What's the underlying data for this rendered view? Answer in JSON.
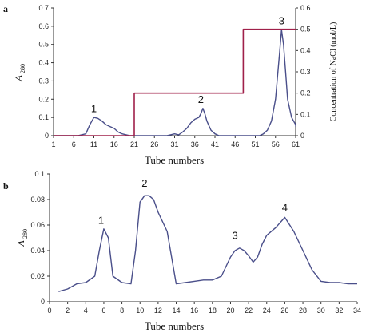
{
  "chart_data": [
    {
      "panel": "a",
      "type": "line",
      "xlabel": "Tube numbers",
      "ylabel": "A",
      "ylabel_sub": "280",
      "y2label": "Concentration of NaCl (mol/L)",
      "xlim": [
        1,
        61
      ],
      "ylim": [
        0,
        0.7
      ],
      "y2lim": [
        0,
        0.6
      ],
      "x_ticks": [
        "1",
        "6",
        "11",
        "16",
        "21",
        "26",
        "31",
        "36",
        "41",
        "46",
        "51",
        "56",
        "61"
      ],
      "y_ticks": [
        "0",
        "0.1",
        "0.2",
        "0.3",
        "0.4",
        "0.5",
        "0.6",
        "0.7"
      ],
      "y2_ticks": [
        "0",
        "0.1",
        "0.2",
        "0.3",
        "0.4",
        "0.5",
        "0.6"
      ],
      "series": [
        {
          "axis": "left",
          "color": "#4a4f8a",
          "x": [
            1,
            3,
            5,
            7,
            9,
            10,
            11,
            12,
            13,
            14,
            15,
            16,
            17,
            18,
            19,
            20,
            21,
            22,
            23,
            24,
            25,
            26,
            27,
            28,
            29,
            30,
            31,
            32,
            33,
            34,
            35,
            36,
            37,
            37.5,
            38,
            38.5,
            39,
            40,
            41,
            42,
            43,
            44,
            45,
            46,
            47,
            48,
            49,
            50,
            51,
            52,
            53,
            54,
            55,
            56,
            57,
            57.5,
            58,
            58.5,
            59,
            60,
            61,
            62
          ],
          "values": [
            0,
            0,
            0,
            0,
            0.01,
            0.06,
            0.1,
            0.095,
            0.08,
            0.06,
            0.05,
            0.04,
            0.02,
            0.01,
            0.005,
            0,
            0,
            0,
            0,
            0,
            0,
            0,
            0,
            0,
            0,
            0.005,
            0.01,
            0.005,
            0.02,
            0.04,
            0.07,
            0.09,
            0.1,
            0.12,
            0.15,
            0.12,
            0.08,
            0.03,
            0.01,
            0,
            0,
            0,
            0,
            0,
            0,
            0,
            0,
            0,
            0,
            0,
            0.01,
            0.03,
            0.08,
            0.2,
            0.45,
            0.58,
            0.5,
            0.35,
            0.2,
            0.1,
            0.06,
            0.05
          ]
        },
        {
          "axis": "right",
          "color": "#a0204a",
          "x": [
            1,
            21,
            21,
            48,
            48,
            62
          ],
          "values": [
            0,
            0,
            0.2,
            0.2,
            0.5,
            0.5
          ]
        }
      ],
      "annotations": [
        {
          "text": "1",
          "x": 11,
          "y": 0.13
        },
        {
          "text": "2",
          "x": 37.5,
          "y": 0.18
        },
        {
          "text": "3",
          "x": 57.5,
          "y": 0.61
        }
      ]
    },
    {
      "panel": "b",
      "type": "line",
      "xlabel": "Tube numbers",
      "ylabel": "A",
      "ylabel_sub": "280",
      "xlim": [
        0,
        34
      ],
      "ylim": [
        0,
        0.1
      ],
      "x_ticks": [
        "0",
        "2",
        "4",
        "6",
        "8",
        "10",
        "12",
        "14",
        "16",
        "18",
        "20",
        "22",
        "24",
        "26",
        "28",
        "30",
        "32",
        "34"
      ],
      "y_ticks": [
        "0",
        "0.02",
        "0.04",
        "0.06",
        "0.08",
        "0.1"
      ],
      "series": [
        {
          "color": "#4a4f8a",
          "x": [
            1,
            2,
            3,
            4,
            5,
            5.5,
            6,
            6.5,
            7,
            8,
            9,
            9.5,
            10,
            10.5,
            11,
            11.5,
            12,
            13,
            14,
            15,
            16,
            17,
            18,
            19,
            20,
            20.5,
            21,
            21.5,
            22,
            22.5,
            23,
            23.5,
            24,
            25,
            26,
            27,
            28,
            29,
            30,
            31,
            32,
            33,
            34
          ],
          "values": [
            0.008,
            0.01,
            0.014,
            0.015,
            0.02,
            0.04,
            0.057,
            0.05,
            0.02,
            0.015,
            0.014,
            0.04,
            0.078,
            0.083,
            0.083,
            0.08,
            0.07,
            0.055,
            0.014,
            0.015,
            0.016,
            0.017,
            0.017,
            0.02,
            0.035,
            0.04,
            0.042,
            0.04,
            0.036,
            0.031,
            0.035,
            0.045,
            0.052,
            0.058,
            0.066,
            0.055,
            0.04,
            0.025,
            0.016,
            0.015,
            0.015,
            0.014,
            0.014
          ]
        }
      ],
      "annotations": [
        {
          "text": "1",
          "x": 5.7,
          "y": 0.061
        },
        {
          "text": "2",
          "x": 10.5,
          "y": 0.09
        },
        {
          "text": "3",
          "x": 20.5,
          "y": 0.049
        },
        {
          "text": "4",
          "x": 26,
          "y": 0.071
        }
      ]
    }
  ]
}
